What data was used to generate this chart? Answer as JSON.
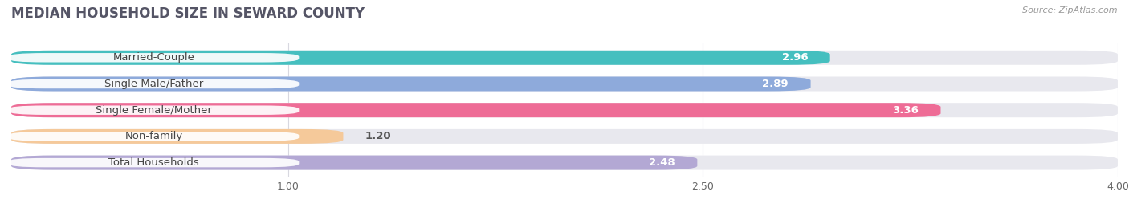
{
  "title": "MEDIAN HOUSEHOLD SIZE IN SEWARD COUNTY",
  "source": "Source: ZipAtlas.com",
  "categories": [
    "Married-Couple",
    "Single Male/Father",
    "Single Female/Mother",
    "Non-family",
    "Total Households"
  ],
  "values": [
    2.96,
    2.89,
    3.36,
    1.2,
    2.48
  ],
  "bar_colors": [
    "#45bfbf",
    "#8eaadb",
    "#ee6c96",
    "#f5c99a",
    "#b3a8d4"
  ],
  "bar_bg_color": "#e8e8ee",
  "xlim_start": 0.0,
  "xlim_end": 4.0,
  "xticks": [
    1.0,
    2.5,
    4.0
  ],
  "xtick_labels": [
    "1.00",
    "2.50",
    "4.00"
  ],
  "label_fontsize": 9.5,
  "value_fontsize": 9.5,
  "title_fontsize": 12,
  "background_color": "#ffffff",
  "grid_color": "#d8d8e0"
}
